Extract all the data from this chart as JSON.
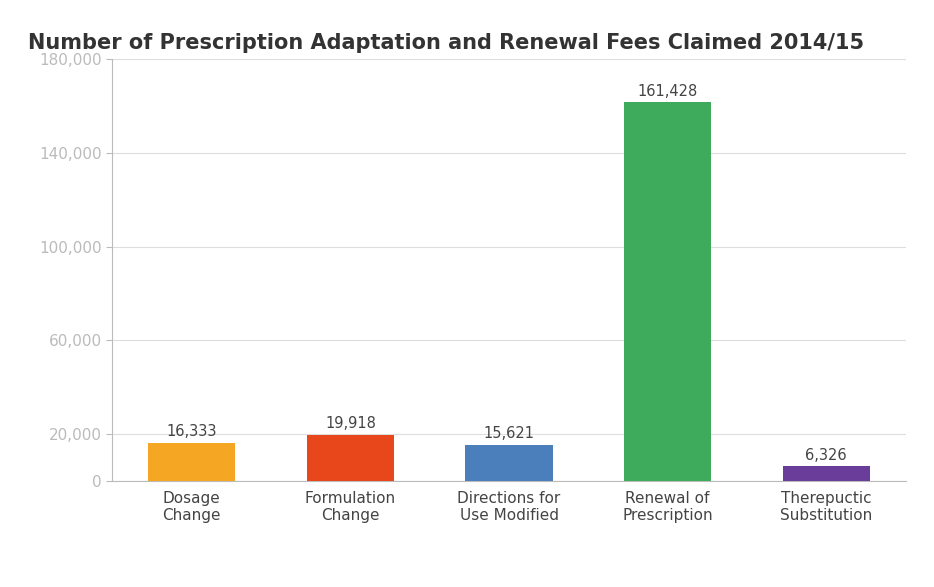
{
  "title": "Number of Prescription Adaptation and Renewal Fees Claimed 2014/15",
  "categories": [
    "Dosage\nChange",
    "Formulation\nChange",
    "Directions for\nUse Modified",
    "Renewal of\nPrescription",
    "Therepuctic\nSubstitution"
  ],
  "values": [
    16333,
    19918,
    15621,
    161428,
    6326
  ],
  "bar_colors": [
    "#F5A623",
    "#E8471C",
    "#4A7FBB",
    "#3DAA5C",
    "#6A3D9A"
  ],
  "value_labels": [
    "16,333",
    "19,918",
    "15,621",
    "161,428",
    "6,326"
  ],
  "ylim": [
    0,
    180000
  ],
  "yticks": [
    0,
    20000,
    60000,
    100000,
    140000,
    180000
  ],
  "ytick_labels": [
    "0",
    "20,000",
    "60,000",
    "100,000",
    "140,000",
    "180,000"
  ],
  "title_fontsize": 15,
  "title_bg_color": "#D3D3D3",
  "plot_bg_color": "#FFFFFF",
  "bar_width": 0.55,
  "label_fontsize": 11,
  "tick_fontsize": 11,
  "value_label_fontsize": 10.5
}
